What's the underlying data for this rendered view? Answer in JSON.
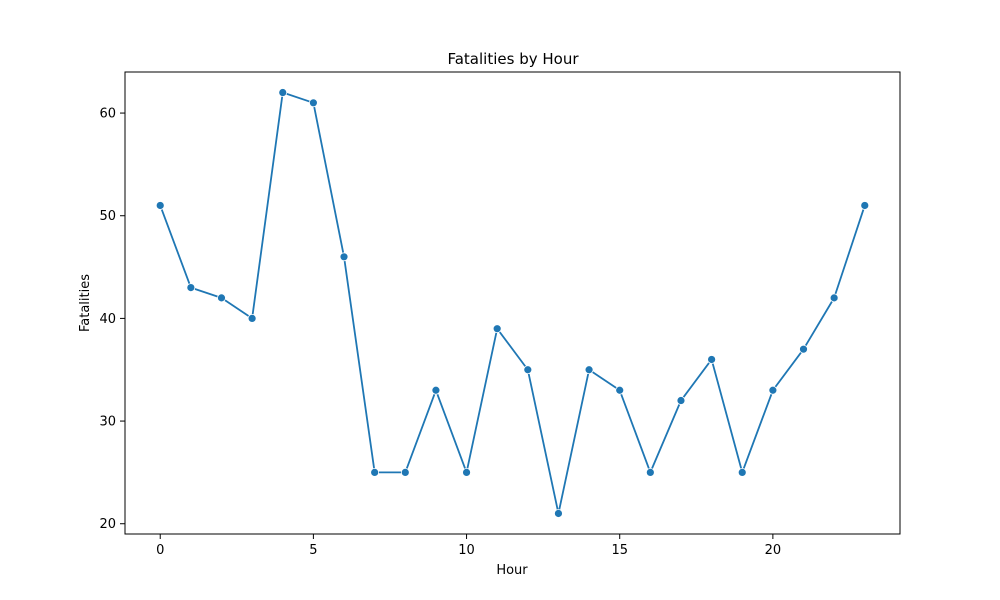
{
  "chart_data": {
    "type": "line",
    "title": "Fatalities by Hour",
    "xlabel": "Hour",
    "ylabel": "Fatalities",
    "x": [
      0,
      1,
      2,
      3,
      4,
      5,
      6,
      7,
      8,
      9,
      10,
      11,
      12,
      13,
      14,
      15,
      16,
      17,
      18,
      19,
      20,
      21,
      22,
      23
    ],
    "series": [
      {
        "values": [
          51,
          43,
          42,
          40,
          62,
          61,
          46,
          25,
          25,
          33,
          25,
          39,
          35,
          21,
          35,
          33,
          25,
          32,
          36,
          25,
          33,
          37,
          42,
          51
        ],
        "color": "#1f77b4"
      }
    ],
    "xlim": [
      -1.15,
      24.15
    ],
    "ylim": [
      19.0,
      64.0
    ],
    "xticks": [
      0,
      5,
      10,
      15,
      20
    ],
    "yticks": [
      20,
      30,
      40,
      50,
      60
    ],
    "grid": false,
    "marker": "circle"
  }
}
